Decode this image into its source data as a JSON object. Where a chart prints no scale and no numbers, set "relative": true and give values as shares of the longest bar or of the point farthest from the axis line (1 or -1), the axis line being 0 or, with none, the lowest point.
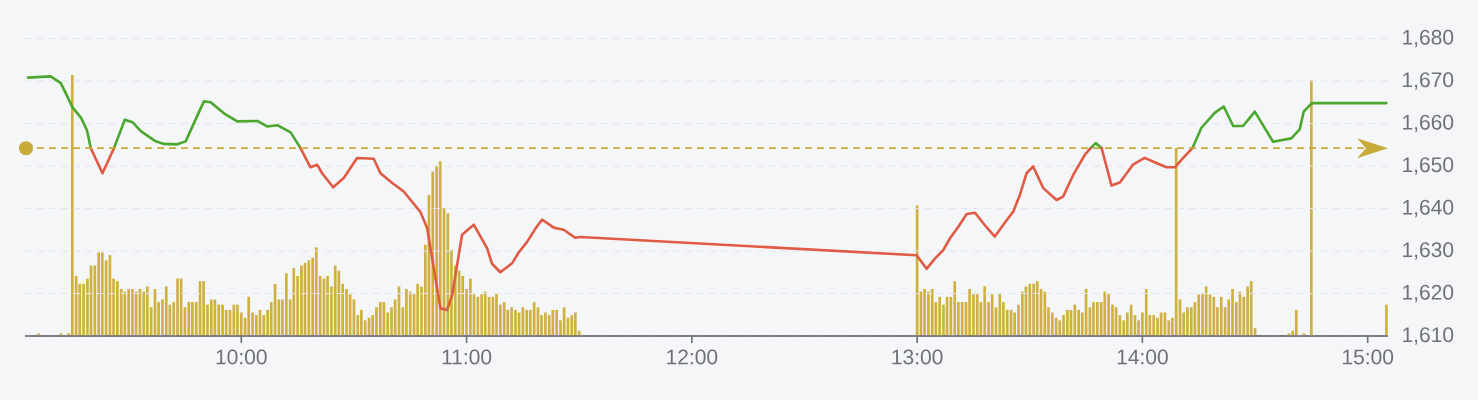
{
  "chart_data": [
    {
      "type": "line",
      "xlim": [
        9.04,
        15.09
      ],
      "ylim": [
        1610,
        1680
      ],
      "grid": "y",
      "xticks": [
        {
          "value": 10,
          "label": "10:00"
        },
        {
          "value": 11,
          "label": "11:00"
        },
        {
          "value": 12,
          "label": "12:00"
        },
        {
          "value": 13,
          "label": "13:00"
        },
        {
          "value": 14,
          "label": "14:00"
        },
        {
          "value": 15,
          "label": "15:00"
        }
      ],
      "yticks": [
        {
          "value": 1610,
          "label": "1,610"
        },
        {
          "value": 1620,
          "label": "1,620"
        },
        {
          "value": 1630,
          "label": "1,630"
        },
        {
          "value": 1640,
          "label": "1,640"
        },
        {
          "value": 1650,
          "label": "1,650"
        },
        {
          "value": 1660,
          "label": "1,660"
        },
        {
          "value": 1670,
          "label": "1,670"
        },
        {
          "value": 1680,
          "label": "1,680"
        }
      ],
      "ref_lines": [
        {
          "axis": "y",
          "value": 1654.2,
          "color": "#c9ab3c",
          "line_style": "dashed"
        }
      ],
      "series": [
        {
          "color": "#4ba72d",
          "x": [
            9.054,
            9.154,
            9.199,
            9.251,
            9.288,
            9.315,
            9.332,
            9.384,
            9.435,
            9.483,
            9.517,
            9.554,
            9.62,
            9.657,
            9.716,
            9.753,
            9.834,
            9.864,
            9.923,
            9.982,
            10.071,
            10.115,
            10.16,
            10.219,
            10.263,
            11.5,
            13.77,
            13.793,
            13.819,
            14.0,
            14.222,
            14.262,
            14.321,
            14.361,
            14.403,
            14.447,
            14.499,
            14.58,
            14.661,
            14.698,
            14.716,
            14.752,
            15.083
          ],
          "values": [
            1670.8,
            1671.1,
            1669.5,
            1663.8,
            1661.4,
            1658.4,
            1654.2,
            null,
            1654.2,
            1660.9,
            1660.3,
            1658.2,
            1655.8,
            1655.2,
            1655.1,
            1655.8,
            1665.2,
            1665,
            1662.4,
            1660.5,
            1660.6,
            1659.3,
            1659.6,
            1657.9,
            1654.2,
            null,
            1654.2,
            1655.4,
            1654.2,
            null,
            1654.2,
            1659,
            1662.5,
            1664,
            1659.4,
            1659.4,
            1662.8,
            1655.7,
            1656.5,
            1658.6,
            1662.8,
            1664.8,
            1664.8
          ]
        },
        {
          "color": "#e05b45",
          "x": [
            9.332,
            9.384,
            9.435,
            9.8,
            10.263,
            10.307,
            10.337,
            10.359,
            10.408,
            10.455,
            10.514,
            10.588,
            10.618,
            10.67,
            10.721,
            10.795,
            10.825,
            10.884,
            10.913,
            10.936,
            10.98,
            11.032,
            11.091,
            11.113,
            11.15,
            11.202,
            11.232,
            11.268,
            11.306,
            11.335,
            11.387,
            11.431,
            11.483,
            11.505,
            12.998,
            13.042,
            13.079,
            13.116,
            13.146,
            13.183,
            13.22,
            13.257,
            13.308,
            13.345,
            13.39,
            13.427,
            13.456,
            13.486,
            13.515,
            13.56,
            13.619,
            13.648,
            13.693,
            13.745,
            13.77,
            13.793,
            13.819,
            13.863,
            13.9,
            13.958,
            14.01,
            14.062,
            14.107,
            14.144,
            14.181,
            14.222
          ],
          "values": [
            1654.2,
            1648.3,
            1654.2,
            null,
            1654.2,
            1649.7,
            1650.3,
            1648.3,
            1645,
            1647.2,
            1651.9,
            1651.7,
            1648.3,
            1646,
            1644,
            1639.2,
            1635.4,
            1616.5,
            1616.1,
            1619.6,
            1633.8,
            1636.2,
            1630.7,
            1627,
            1625,
            1627.1,
            1629.7,
            1632.1,
            1635.3,
            1637.4,
            1635.5,
            1635,
            1633.1,
            1633.3,
            1629,
            1625.8,
            1628.2,
            1630.2,
            1633,
            1635.7,
            1638.7,
            1639,
            1635.6,
            1633.4,
            1636.7,
            1639.3,
            1643.2,
            1648.3,
            1649.9,
            1644.8,
            1642,
            1642.8,
            1647.9,
            1652.7,
            1654.2,
            null,
            1654.2,
            1645.4,
            1646.1,
            1650.3,
            1651.9,
            1650.7,
            1649.7,
            1649.7,
            1651.9,
            1654.2
          ]
        }
      ]
    },
    {
      "type": "bar",
      "relative": true,
      "xlim": [
        9.04,
        15.09
      ],
      "color": "#cfb140",
      "x": [
        9.1,
        9.2,
        9.233,
        9.25,
        9.267,
        9.283,
        9.3,
        9.317,
        9.333,
        9.35,
        9.367,
        9.383,
        9.4,
        9.417,
        9.433,
        9.45,
        9.467,
        9.483,
        9.5,
        9.517,
        9.533,
        9.55,
        9.567,
        9.583,
        9.6,
        9.617,
        9.633,
        9.65,
        9.667,
        9.683,
        9.7,
        9.717,
        9.733,
        9.75,
        9.767,
        9.783,
        9.8,
        9.817,
        9.833,
        9.85,
        9.867,
        9.883,
        9.9,
        9.917,
        9.933,
        9.95,
        9.967,
        9.983,
        10.0,
        10.017,
        10.033,
        10.05,
        10.067,
        10.083,
        10.1,
        10.117,
        10.133,
        10.15,
        10.167,
        10.183,
        10.2,
        10.217,
        10.233,
        10.25,
        10.267,
        10.283,
        10.3,
        10.317,
        10.333,
        10.35,
        10.367,
        10.383,
        10.4,
        10.417,
        10.433,
        10.45,
        10.467,
        10.483,
        10.5,
        10.517,
        10.533,
        10.55,
        10.567,
        10.583,
        10.6,
        10.617,
        10.633,
        10.65,
        10.667,
        10.683,
        10.7,
        10.717,
        10.733,
        10.75,
        10.767,
        10.783,
        10.8,
        10.817,
        10.833,
        10.85,
        10.867,
        10.883,
        10.9,
        10.917,
        10.933,
        10.95,
        10.967,
        10.983,
        11.0,
        11.017,
        11.033,
        11.05,
        11.067,
        11.083,
        11.1,
        11.117,
        11.133,
        11.15,
        11.167,
        11.183,
        11.2,
        11.217,
        11.233,
        11.25,
        11.267,
        11.283,
        11.3,
        11.317,
        11.333,
        11.35,
        11.367,
        11.383,
        11.4,
        11.417,
        11.433,
        11.45,
        11.467,
        11.483,
        11.5,
        13.0,
        13.017,
        13.033,
        13.05,
        13.067,
        13.083,
        13.1,
        13.117,
        13.133,
        13.15,
        13.167,
        13.183,
        13.2,
        13.217,
        13.233,
        13.25,
        13.267,
        13.283,
        13.3,
        13.317,
        13.333,
        13.35,
        13.367,
        13.383,
        13.4,
        13.417,
        13.433,
        13.45,
        13.467,
        13.483,
        13.5,
        13.517,
        13.533,
        13.55,
        13.567,
        13.583,
        13.6,
        13.617,
        13.633,
        13.65,
        13.667,
        13.683,
        13.7,
        13.717,
        13.733,
        13.75,
        13.767,
        13.783,
        13.8,
        13.817,
        13.833,
        13.85,
        13.867,
        13.883,
        13.9,
        13.917,
        13.933,
        13.95,
        13.967,
        13.983,
        14.0,
        14.017,
        14.033,
        14.05,
        14.067,
        14.083,
        14.1,
        14.117,
        14.133,
        14.15,
        14.167,
        14.183,
        14.2,
        14.217,
        14.233,
        14.25,
        14.267,
        14.283,
        14.3,
        14.317,
        14.333,
        14.35,
        14.367,
        14.383,
        14.4,
        14.417,
        14.433,
        14.45,
        14.467,
        14.483,
        14.5,
        14.65,
        14.667,
        14.683,
        14.717,
        14.75,
        15.083
      ],
      "values": [
        0.01,
        0.01,
        0.01,
        1,
        0.23,
        0.2,
        0.2,
        0.22,
        0.27,
        0.27,
        0.32,
        0.32,
        0.29,
        0.31,
        0.22,
        0.21,
        0.18,
        0.17,
        0.18,
        0.18,
        0.17,
        0.18,
        0.17,
        0.19,
        0.11,
        0.18,
        0.13,
        0.14,
        0.19,
        0.12,
        0.13,
        0.22,
        0.22,
        0.11,
        0.13,
        0.13,
        0.13,
        0.21,
        0.21,
        0.12,
        0.14,
        0.14,
        0.12,
        0.12,
        0.1,
        0.1,
        0.12,
        0.12,
        0.09,
        0.07,
        0.15,
        0.09,
        0.08,
        0.1,
        0.08,
        0.1,
        0.13,
        0.2,
        0.14,
        0.14,
        0.24,
        0.14,
        0.26,
        0.23,
        0.27,
        0.28,
        0.29,
        0.3,
        0.34,
        0.23,
        0.22,
        0.23,
        0.19,
        0.27,
        0.25,
        0.2,
        0.18,
        0.16,
        0.14,
        0.08,
        0.1,
        0.06,
        0.07,
        0.08,
        0.11,
        0.13,
        0.13,
        0.09,
        0.11,
        0.14,
        0.19,
        0.11,
        0.18,
        0.17,
        0.16,
        0.2,
        0.19,
        0.35,
        0.54,
        0.63,
        0.65,
        0.67,
        0.49,
        0.47,
        0.33,
        0.27,
        0.25,
        0.23,
        0.18,
        0.22,
        0.16,
        0.15,
        0.16,
        0.17,
        0.15,
        0.15,
        0.16,
        0.12,
        0.13,
        0.1,
        0.11,
        0.1,
        0.09,
        0.11,
        0.1,
        0.1,
        0.13,
        0.11,
        0.08,
        0.09,
        0.08,
        0.1,
        0.1,
        0.06,
        0.11,
        0.07,
        0.08,
        0.09,
        0.02,
        0.5,
        0.17,
        0.18,
        0.17,
        0.18,
        0.13,
        0.15,
        0.12,
        0.15,
        0.15,
        0.21,
        0.13,
        0.13,
        0.13,
        0.18,
        0.16,
        0.16,
        0.13,
        0.19,
        0.13,
        0.16,
        0.11,
        0.16,
        0.13,
        0.1,
        0.1,
        0.09,
        0.12,
        0.17,
        0.19,
        0.2,
        0.2,
        0.21,
        0.18,
        0.17,
        0.11,
        0.09,
        0.07,
        0.06,
        0.08,
        0.1,
        0.1,
        0.12,
        0.1,
        0.09,
        0.18,
        0.11,
        0.13,
        0.13,
        0.13,
        0.17,
        0.16,
        0.12,
        0.11,
        0.08,
        0.06,
        0.09,
        0.12,
        0.08,
        0.06,
        0.09,
        0.18,
        0.08,
        0.08,
        0.07,
        0.09,
        0.09,
        0.06,
        0.07,
        0.72,
        0.14,
        0.09,
        0.11,
        0.11,
        0.13,
        0.16,
        0.16,
        0.19,
        0.16,
        0.15,
        0.11,
        0.15,
        0.11,
        0.14,
        0.18,
        0.13,
        0.17,
        0.15,
        0.19,
        0.21,
        0.03,
        0.01,
        0.02,
        0.1,
        0.01,
        0.98,
        0.12
      ]
    }
  ]
}
